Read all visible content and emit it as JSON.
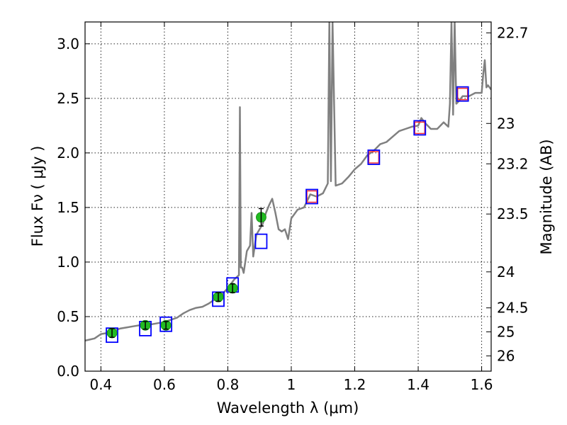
{
  "chart_data": {
    "type": "line",
    "xlabel": "Wavelength  λ (μm)",
    "ylabel": "Flux  Fν  ( μJy )",
    "ylabel_right": "Magnitude (AB)",
    "xlim": [
      0.35,
      1.63
    ],
    "ylim": [
      0.0,
      3.2
    ],
    "grid": true,
    "x_ticks": [
      0.4,
      0.6,
      0.8,
      1.0,
      1.2,
      1.4,
      1.6
    ],
    "x_tick_labels": [
      "0.4",
      "0.6",
      "0.8",
      "1",
      "1.2",
      "1.4",
      "1.6"
    ],
    "y_ticks": [
      0.0,
      0.5,
      1.0,
      1.5,
      2.0,
      2.5,
      3.0
    ],
    "y_tick_labels": [
      "0.0",
      "0.5",
      "1.0",
      "1.5",
      "2.0",
      "2.5",
      "3.0"
    ],
    "right_ticks": [
      {
        "flux": 3.1,
        "label": "22.7"
      },
      {
        "flux": 2.27,
        "label": "23"
      },
      {
        "flux": 1.9,
        "label": "23.2"
      },
      {
        "flux": 1.44,
        "label": "23.5"
      },
      {
        "flux": 0.91,
        "label": "24"
      },
      {
        "flux": 0.58,
        "label": "24.5"
      },
      {
        "flux": 0.36,
        "label": "25"
      },
      {
        "flux": 0.14,
        "label": "26"
      }
    ],
    "series": [
      {
        "kind": "model-spectrum",
        "color": "#808080",
        "x": [
          0.35,
          0.38,
          0.4,
          0.42,
          0.44,
          0.46,
          0.48,
          0.5,
          0.52,
          0.54,
          0.56,
          0.58,
          0.6,
          0.62,
          0.64,
          0.66,
          0.68,
          0.7,
          0.72,
          0.74,
          0.76,
          0.78,
          0.8,
          0.82,
          0.835,
          0.838,
          0.841,
          0.845,
          0.85,
          0.86,
          0.87,
          0.875,
          0.88,
          0.89,
          0.9,
          0.91,
          0.92,
          0.93,
          0.94,
          0.95,
          0.96,
          0.97,
          0.98,
          0.99,
          1.0,
          1.02,
          1.04,
          1.06,
          1.08,
          1.1,
          1.115,
          1.12,
          1.125,
          1.13,
          1.14,
          1.16,
          1.18,
          1.2,
          1.22,
          1.24,
          1.26,
          1.28,
          1.3,
          1.32,
          1.34,
          1.36,
          1.38,
          1.4,
          1.41,
          1.42,
          1.44,
          1.46,
          1.48,
          1.495,
          1.5,
          1.505,
          1.51,
          1.515,
          1.52,
          1.53,
          1.54,
          1.56,
          1.58,
          1.6,
          1.605,
          1.61,
          1.615,
          1.62,
          1.63
        ],
        "y": [
          0.28,
          0.3,
          0.34,
          0.35,
          0.37,
          0.39,
          0.4,
          0.41,
          0.42,
          0.43,
          0.43,
          0.44,
          0.45,
          0.47,
          0.49,
          0.53,
          0.56,
          0.58,
          0.59,
          0.62,
          0.66,
          0.7,
          0.76,
          0.84,
          0.88,
          2.42,
          0.95,
          0.95,
          0.9,
          1.1,
          1.15,
          1.45,
          1.05,
          1.25,
          1.3,
          1.35,
          1.45,
          1.52,
          1.58,
          1.45,
          1.3,
          1.28,
          1.3,
          1.21,
          1.4,
          1.48,
          1.5,
          1.62,
          1.6,
          1.63,
          1.72,
          3.2,
          1.74,
          3.2,
          1.7,
          1.72,
          1.78,
          1.85,
          1.9,
          1.98,
          2.02,
          2.08,
          2.1,
          2.15,
          2.2,
          2.22,
          2.24,
          2.25,
          2.32,
          2.28,
          2.22,
          2.22,
          2.28,
          2.24,
          2.45,
          3.2,
          2.35,
          3.2,
          2.45,
          2.48,
          2.52,
          2.52,
          2.55,
          2.55,
          2.72,
          2.85,
          2.6,
          2.62,
          2.58
        ]
      },
      {
        "kind": "model-synthetic-photometry",
        "name": "open blue squares",
        "color": "#0000ff",
        "x": [
          0.435,
          0.54,
          0.605,
          0.77,
          0.815,
          0.905,
          1.065,
          1.26,
          1.405,
          1.54
        ],
        "y": [
          0.33,
          0.39,
          0.43,
          0.66,
          0.79,
          1.19,
          1.6,
          1.96,
          2.23,
          2.54
        ]
      },
      {
        "kind": "observed-photometry",
        "name": "green points",
        "color": "#22bb22",
        "x": [
          0.435,
          0.54,
          0.605,
          0.77,
          0.815,
          0.905
        ],
        "y": [
          0.35,
          0.42,
          0.42,
          0.68,
          0.76,
          1.41
        ],
        "yerr": [
          0.04,
          0.035,
          0.035,
          0.04,
          0.04,
          0.08
        ]
      },
      {
        "kind": "nir-photometry",
        "name": "red squares",
        "color": "#ff3333",
        "x": [
          1.065,
          1.26,
          1.405,
          1.54
        ],
        "y": [
          1.6,
          1.96,
          2.23,
          2.54
        ]
      }
    ]
  }
}
